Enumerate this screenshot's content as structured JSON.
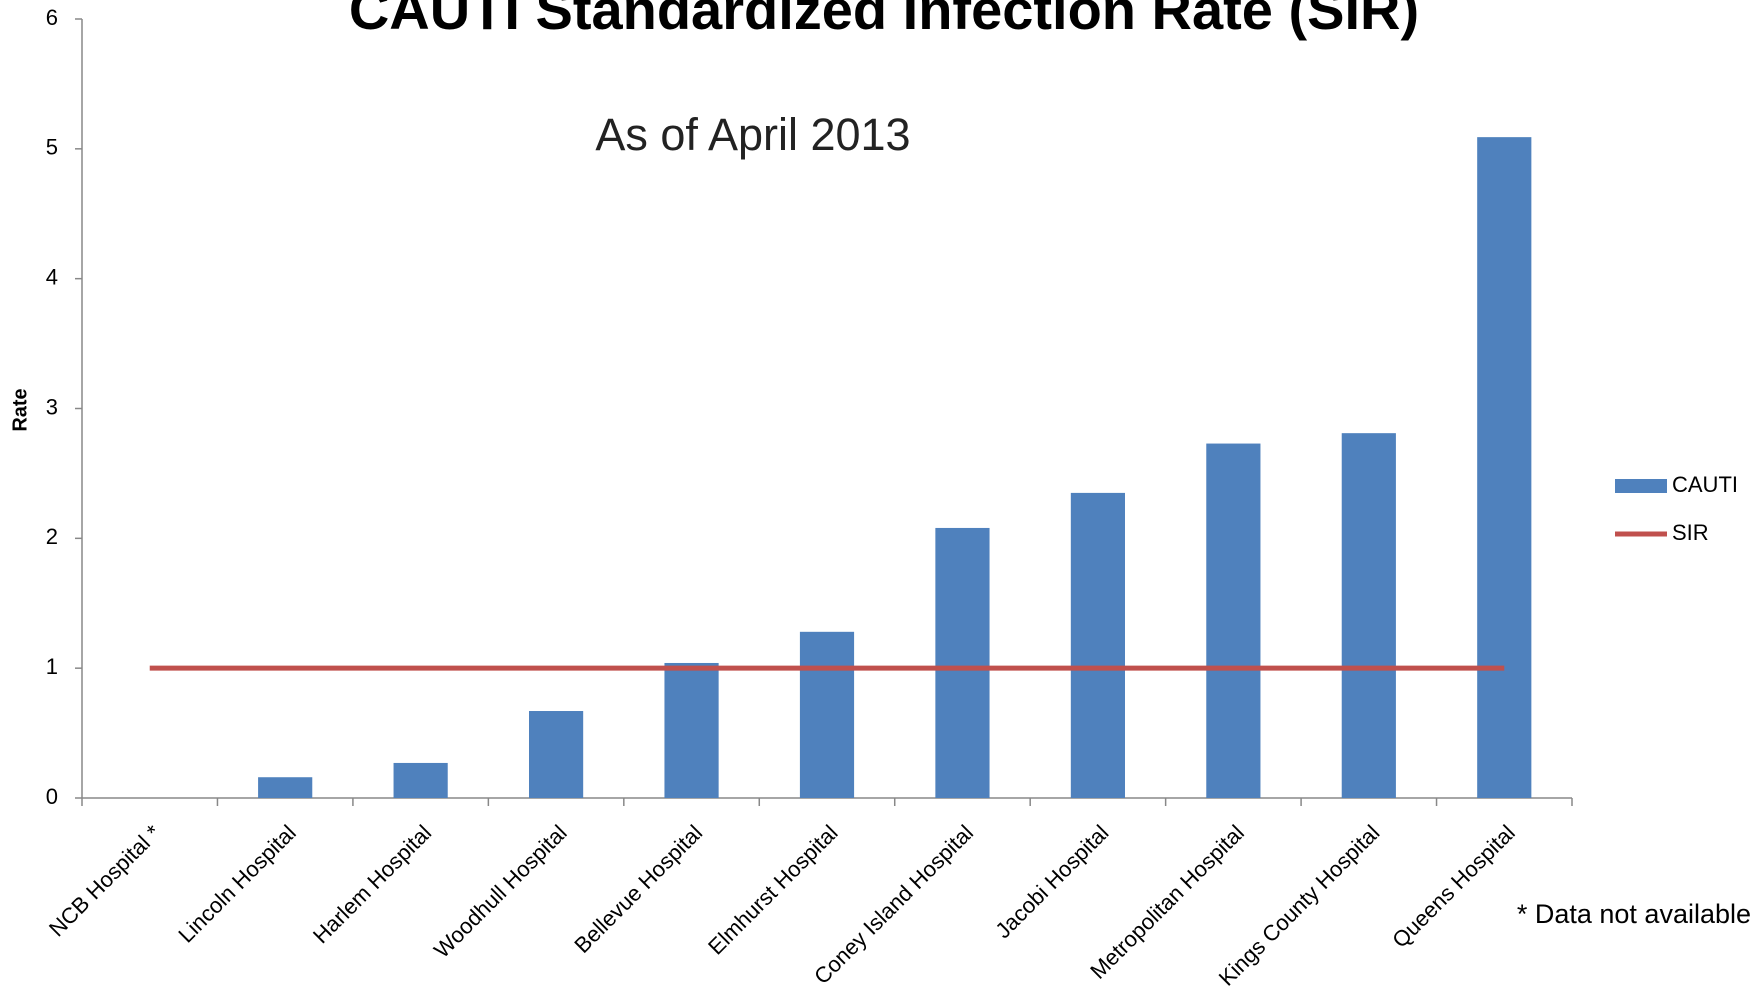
{
  "chart_data": {
    "type": "bar",
    "title": "CAUTI Standardized Infection Rate (SIR)",
    "subtitle": "As of April 2013",
    "y_label": "Rate",
    "annotation": "* Data not available",
    "categories": [
      "NCB Hospital *",
      "Lincoln Hospital",
      "Harlem Hospital",
      "Woodhull Hospital",
      "Bellevue Hospital",
      "Elmhurst Hospital",
      "Coney Island Hospital",
      "Jacobi Hospital",
      "Metropolitan Hospital",
      "Kings County Hospital",
      "Queens Hospital"
    ],
    "series": [
      {
        "name": "CAUTI",
        "type": "bar",
        "color": "#4f81bd",
        "values": [
          null,
          0.16,
          0.27,
          0.67,
          1.04,
          1.28,
          2.08,
          2.35,
          2.73,
          2.81,
          5.09
        ]
      },
      {
        "name": "SIR",
        "type": "line",
        "color": "#c0504d",
        "values": [
          1,
          1,
          1,
          1,
          1,
          1,
          1,
          1,
          1,
          1,
          1
        ]
      }
    ],
    "ylim": [
      0,
      6
    ],
    "yticks": [
      0,
      1,
      2,
      3,
      4,
      5,
      6
    ],
    "grid": false,
    "legend": "right"
  }
}
